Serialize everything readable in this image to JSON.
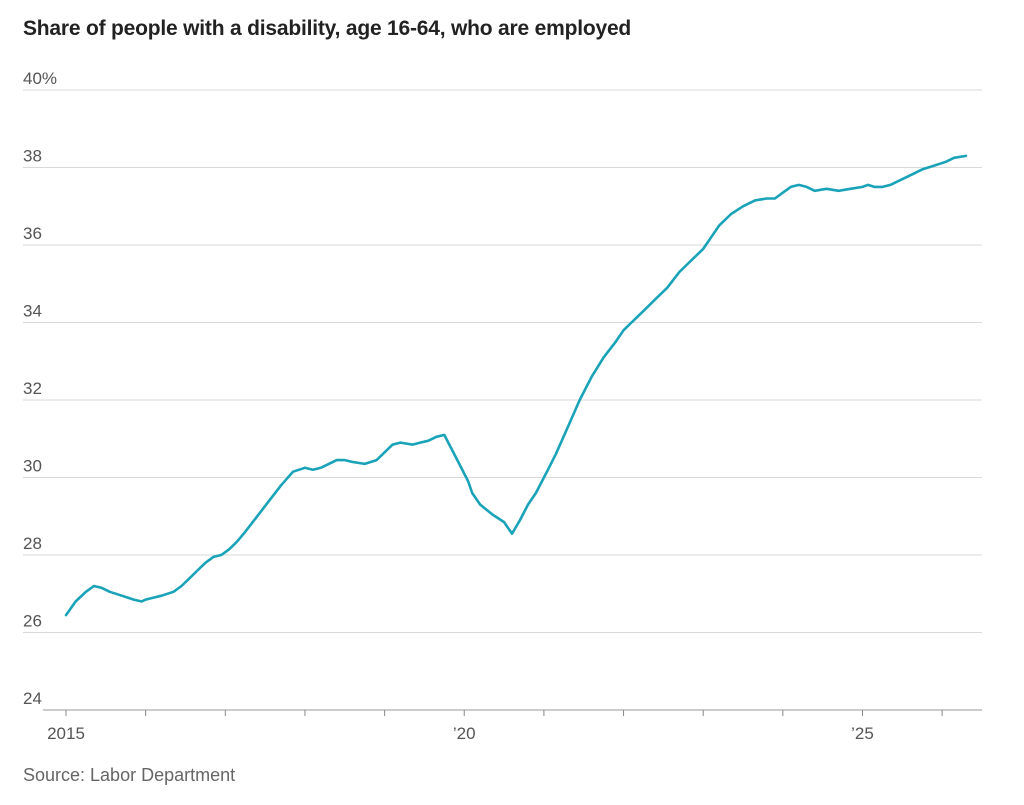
{
  "chart_data": {
    "type": "line",
    "title": "Share of people with a disability, age 16-64, who are employed",
    "source": "Source: Labor Department",
    "xlabel": "",
    "ylabel": "",
    "ylim": [
      24,
      40
    ],
    "y_ticks": [
      24,
      26,
      28,
      30,
      32,
      34,
      36,
      38,
      40
    ],
    "y_tick_labels": [
      "24",
      "26",
      "28",
      "30",
      "32",
      "34",
      "36",
      "38",
      "40%"
    ],
    "xlim": [
      2015.0,
      2026.4
    ],
    "x_ticks": [
      2015,
      2016,
      2017,
      2018,
      2019,
      2020,
      2021,
      2022,
      2023,
      2024,
      2025,
      2026
    ],
    "x_tick_labels": [
      {
        "x": 2015,
        "label": "2015"
      },
      {
        "x": 2020,
        "label": "’20"
      },
      {
        "x": 2025,
        "label": "’25"
      }
    ],
    "grid": true,
    "color": "#1aa3b8",
    "series": [
      {
        "name": "",
        "x": [
          2015.0,
          2015.12,
          2015.25,
          2015.35,
          2015.45,
          2015.55,
          2015.7,
          2015.85,
          2015.95,
          2016.0,
          2016.1,
          2016.2,
          2016.35,
          2016.45,
          2016.55,
          2016.65,
          2016.75,
          2016.85,
          2016.95,
          2017.05,
          2017.15,
          2017.25,
          2017.4,
          2017.55,
          2017.7,
          2017.85,
          2018.0,
          2018.1,
          2018.2,
          2018.3,
          2018.4,
          2018.5,
          2018.6,
          2018.75,
          2018.9,
          2019.0,
          2019.1,
          2019.2,
          2019.35,
          2019.45,
          2019.55,
          2019.65,
          2019.75,
          2019.85,
          2019.95,
          2020.05,
          2020.1,
          2020.2,
          2020.35,
          2020.5,
          2020.6,
          2020.7,
          2020.8,
          2020.9,
          2021.05,
          2021.15,
          2021.3,
          2021.45,
          2021.6,
          2021.75,
          2021.9,
          2022.0,
          2022.1,
          2022.25,
          2022.4,
          2022.55,
          2022.7,
          2022.85,
          2023.0,
          2023.1,
          2023.2,
          2023.35,
          2023.5,
          2023.65,
          2023.8,
          2023.9,
          2024.0,
          2024.1,
          2024.2,
          2024.3,
          2024.4,
          2024.55,
          2024.7,
          2024.85,
          2025.0,
          2025.07,
          2025.15,
          2025.25,
          2025.35,
          2025.45,
          2025.6,
          2025.75,
          2025.9,
          2026.05,
          2026.15,
          2026.3
        ],
        "y": [
          26.45,
          26.8,
          27.05,
          27.2,
          27.15,
          27.05,
          26.95,
          26.85,
          26.8,
          26.85,
          26.9,
          26.95,
          27.05,
          27.2,
          27.4,
          27.6,
          27.8,
          27.95,
          28.0,
          28.15,
          28.35,
          28.6,
          29.0,
          29.4,
          29.8,
          30.15,
          30.25,
          30.2,
          30.25,
          30.35,
          30.45,
          30.45,
          30.4,
          30.35,
          30.45,
          30.65,
          30.85,
          30.9,
          30.85,
          30.9,
          30.95,
          31.05,
          31.1,
          30.7,
          30.3,
          29.9,
          29.6,
          29.3,
          29.05,
          28.85,
          28.55,
          28.9,
          29.3,
          29.6,
          30.2,
          30.6,
          31.3,
          32.0,
          32.6,
          33.1,
          33.5,
          33.8,
          34.0,
          34.3,
          34.6,
          34.9,
          35.3,
          35.6,
          35.9,
          36.2,
          36.5,
          36.8,
          37.0,
          37.15,
          37.2,
          37.2,
          37.35,
          37.5,
          37.55,
          37.5,
          37.4,
          37.45,
          37.4,
          37.45,
          37.5,
          37.55,
          37.5,
          37.5,
          37.55,
          37.65,
          37.8,
          37.95,
          38.05,
          38.15,
          38.25,
          38.3
        ]
      }
    ]
  }
}
